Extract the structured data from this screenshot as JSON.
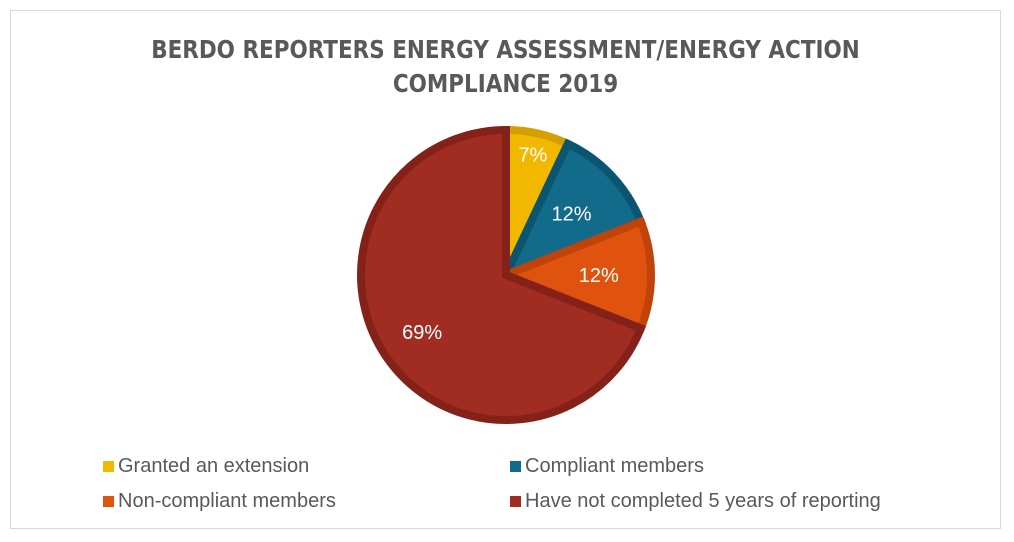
{
  "chart_data": {
    "type": "pie",
    "title": "BERDO REPORTERS ENERGY ASSESSMENT/ENERGY ACTION COMPLIANCE 2019",
    "title_lines": [
      "BERDO REPORTERS ENERGY ASSESSMENT/ENERGY ACTION",
      "COMPLIANCE 2019"
    ],
    "legend_placement": "bottom",
    "slices": [
      {
        "name": "Granted an extension",
        "value": 7,
        "label": "7%",
        "color": "#f2b800",
        "edge": "#d4a000"
      },
      {
        "name": "Compliant members",
        "value": 12,
        "label": "12%",
        "color": "#136b8c",
        "edge": "#0c5570"
      },
      {
        "name": "Non-compliant members",
        "value": 12,
        "label": "12%",
        "color": "#e0530f",
        "edge": "#c0440a"
      },
      {
        "name": "Have not completed 5 years of reporting",
        "value": 69,
        "label": "69%",
        "color": "#a12d22",
        "edge": "#842219"
      }
    ]
  }
}
